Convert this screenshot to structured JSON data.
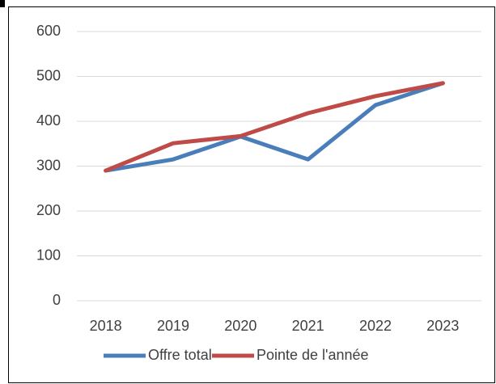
{
  "chart_data": {
    "type": "line",
    "categories": [
      "2018",
      "2019",
      "2020",
      "2021",
      "2022",
      "2023"
    ],
    "series": [
      {
        "name": "Offre total",
        "color": "#4a7ebb",
        "values": [
          290,
          315,
          366,
          315,
          436,
          485
        ]
      },
      {
        "name": "Pointe de l'année",
        "color": "#be4b48",
        "values": [
          290,
          351,
          367,
          418,
          456,
          485
        ]
      }
    ],
    "ylim": [
      0,
      600
    ],
    "yticks": [
      0,
      100,
      200,
      300,
      400,
      500,
      600
    ],
    "grid": true,
    "legend": "bottom"
  }
}
